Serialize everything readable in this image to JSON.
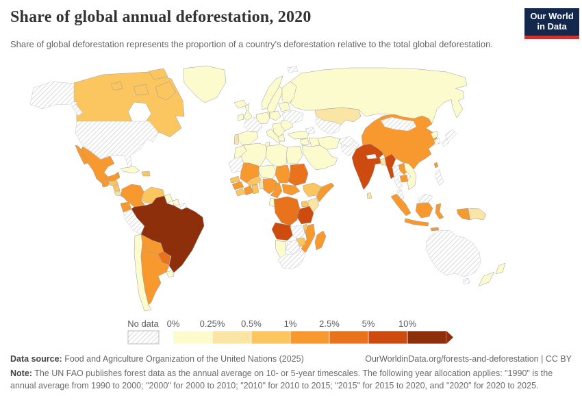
{
  "header": {
    "title": "Share of global annual deforestation, 2020",
    "subtitle": "Share of global deforestation represents the proportion of a country's deforestation relative to the total global deforestation.",
    "logo_line1": "Our World",
    "logo_line2": "in Data",
    "logo_bg": "#12294d",
    "logo_accent": "#cf3130"
  },
  "legend": {
    "no_data_label": "No data",
    "ticks": [
      "0%",
      "0.25%",
      "0.5%",
      "1%",
      "2.5%",
      "5%",
      "10%"
    ],
    "colors": [
      "#fcfbce",
      "#fbe5a4",
      "#fbc55f",
      "#f8992f",
      "#e8731c",
      "#ce4b10",
      "#8e2f0c"
    ],
    "hatch_stroke": "#d9d9d9"
  },
  "chart_data": {
    "type": "choropleth",
    "title": "Share of global annual deforestation, 2020",
    "unit": "%",
    "bucket_ranges": [
      "0-0.25%",
      "0.25-0.5%",
      "0.5-1%",
      "1-2.5%",
      "2.5-5%",
      "5-10%",
      ">10%"
    ],
    "no_data_label": "No data",
    "countries": [
      {
        "id": "russia",
        "name": "Russia",
        "bucket": 0
      },
      {
        "id": "canada",
        "name": "Canada",
        "bucket": 2
      },
      {
        "id": "canada-baffin",
        "name": "Canada",
        "bucket": 2
      },
      {
        "id": "canada-victoria",
        "name": "Canada",
        "bucket": 2
      },
      {
        "id": "canada-ellesmere",
        "name": "Canada",
        "bucket": 2
      },
      {
        "id": "canada-island-w",
        "name": "Canada",
        "bucket": 2
      },
      {
        "id": "usa-alaska",
        "name": "United States",
        "bucket": "no-data"
      },
      {
        "id": "usa-mainland",
        "name": "United States",
        "bucket": "no-data"
      },
      {
        "id": "greenland",
        "name": "Greenland",
        "bucket": 0
      },
      {
        "id": "svalbard",
        "name": "Svalbard",
        "bucket": "no-data"
      },
      {
        "id": "mexico",
        "name": "Mexico",
        "bucket": 3
      },
      {
        "id": "mexico-baja",
        "name": "Mexico",
        "bucket": 3
      },
      {
        "id": "guatemala",
        "name": "Guatemala",
        "bucket": 3
      },
      {
        "id": "honduras",
        "name": "Honduras",
        "bucket": 2
      },
      {
        "id": "nicaragua",
        "name": "Nicaragua",
        "bucket": 2
      },
      {
        "id": "costa-rica",
        "name": "Costa Rica",
        "bucket": 1
      },
      {
        "id": "panama",
        "name": "Panama",
        "bucket": 1
      },
      {
        "id": "cuba",
        "name": "Cuba",
        "bucket": 0
      },
      {
        "id": "hispaniola",
        "name": "Hispaniola",
        "bucket": 2
      },
      {
        "id": "colombia",
        "name": "Colombia",
        "bucket": 3
      },
      {
        "id": "venezuela",
        "name": "Venezuela",
        "bucket": 2
      },
      {
        "id": "guyana",
        "name": "Guyana",
        "bucket": 0
      },
      {
        "id": "suriname",
        "name": "Suriname",
        "bucket": 0
      },
      {
        "id": "french-guiana",
        "name": "French Guiana",
        "bucket": "no-data"
      },
      {
        "id": "ecuador",
        "name": "Ecuador",
        "bucket": 3
      },
      {
        "id": "peru",
        "name": "Peru",
        "bucket": "no-data"
      },
      {
        "id": "brazil",
        "name": "Brazil",
        "bucket": 6
      },
      {
        "id": "bolivia",
        "name": "Bolivia",
        "bucket": 3
      },
      {
        "id": "paraguay",
        "name": "Paraguay",
        "bucket": 4
      },
      {
        "id": "chile",
        "name": "Chile",
        "bucket": 0
      },
      {
        "id": "argentina",
        "name": "Argentina",
        "bucket": 3
      },
      {
        "id": "uruguay",
        "name": "Uruguay",
        "bucket": 0
      },
      {
        "id": "iceland",
        "name": "Iceland",
        "bucket": 0
      },
      {
        "id": "ireland",
        "name": "Ireland",
        "bucket": 0
      },
      {
        "id": "uk",
        "name": "United Kingdom",
        "bucket": 0
      },
      {
        "id": "norway",
        "name": "Norway",
        "bucket": 0
      },
      {
        "id": "sweden",
        "name": "Sweden",
        "bucket": 0
      },
      {
        "id": "finland",
        "name": "Finland",
        "bucket": 0
      },
      {
        "id": "denmark",
        "name": "Denmark",
        "bucket": 0
      },
      {
        "id": "spain",
        "name": "Spain",
        "bucket": 0
      },
      {
        "id": "portugal",
        "name": "Portugal",
        "bucket": 1
      },
      {
        "id": "france",
        "name": "France",
        "bucket": "no-data"
      },
      {
        "id": "germany",
        "name": "Germany",
        "bucket": 0
      },
      {
        "id": "italy",
        "name": "Italy",
        "bucket": 0
      },
      {
        "id": "poland",
        "name": "Poland",
        "bucket": 0
      },
      {
        "id": "balkans",
        "name": "Balkans",
        "bucket": 0
      },
      {
        "id": "greece",
        "name": "Greece",
        "bucket": 0
      },
      {
        "id": "romania",
        "name": "Romania",
        "bucket": 0
      },
      {
        "id": "baltics",
        "name": "Baltic states & Belarus",
        "bucket": 0
      },
      {
        "id": "ukraine",
        "name": "Ukraine",
        "bucket": "no-data"
      },
      {
        "id": "turkey",
        "name": "Turkey",
        "bucket": 0
      },
      {
        "id": "caucasus",
        "name": "Caucasus",
        "bucket": "no-data"
      },
      {
        "id": "kazakhstan",
        "name": "Kazakhstan",
        "bucket": 1
      },
      {
        "id": "central-asia",
        "name": "Turkmenistan & Uzbekistan",
        "bucket": "no-data"
      },
      {
        "id": "iran",
        "name": "Iran",
        "bucket": 0
      },
      {
        "id": "iraq",
        "name": "Iraq",
        "bucket": 0
      },
      {
        "id": "levant",
        "name": "Syria & Jordan",
        "bucket": 0
      },
      {
        "id": "saudi",
        "name": "Saudi Arabia",
        "bucket": 0
      },
      {
        "id": "afghanistan",
        "name": "Afghanistan",
        "bucket": "no-data"
      },
      {
        "id": "pakistan",
        "name": "Pakistan",
        "bucket": "no-data"
      },
      {
        "id": "india",
        "name": "India",
        "bucket": 5
      },
      {
        "id": "nepal",
        "name": "Nepal",
        "bucket": "no-data"
      },
      {
        "id": "sri-lanka",
        "name": "Sri Lanka",
        "bucket": 1
      },
      {
        "id": "bangladesh",
        "name": "Bangladesh",
        "bucket": 1
      },
      {
        "id": "myanmar",
        "name": "Myanmar",
        "bucket": 5
      },
      {
        "id": "thailand",
        "name": "Thailand",
        "bucket": "no-data"
      },
      {
        "id": "laos",
        "name": "Laos",
        "bucket": 3
      },
      {
        "id": "cambodia",
        "name": "Cambodia",
        "bucket": 3
      },
      {
        "id": "vietnam",
        "name": "Vietnam",
        "bucket": 0
      },
      {
        "id": "malaysia",
        "name": "Malaysia",
        "bucket": "no-data"
      },
      {
        "id": "malaysia-borneo",
        "name": "Malaysia",
        "bucket": "no-data"
      },
      {
        "id": "china",
        "name": "China",
        "bucket": 3
      },
      {
        "id": "mongolia",
        "name": "Mongolia",
        "bucket": "no-data"
      },
      {
        "id": "taiwan",
        "name": "Taiwan",
        "bucket": 3
      },
      {
        "id": "north-korea",
        "name": "North Korea",
        "bucket": 0
      },
      {
        "id": "south-korea",
        "name": "South Korea",
        "bucket": "no-data"
      },
      {
        "id": "japan-honshu",
        "name": "Japan",
        "bucket": "no-data"
      },
      {
        "id": "japan-kyushu",
        "name": "Japan",
        "bucket": "no-data"
      },
      {
        "id": "philippines",
        "name": "Philippines",
        "bucket": "no-data"
      },
      {
        "id": "sumatra",
        "name": "Indonesia",
        "bucket": 3
      },
      {
        "id": "java",
        "name": "Indonesia",
        "bucket": 3
      },
      {
        "id": "borneo",
        "name": "Indonesia",
        "bucket": 3
      },
      {
        "id": "sulawesi",
        "name": "Indonesia",
        "bucket": 3
      },
      {
        "id": "west-papua",
        "name": "Indonesia",
        "bucket": 3
      },
      {
        "id": "lesser-sunda",
        "name": "Indonesia",
        "bucket": 3
      },
      {
        "id": "papua-new-guinea",
        "name": "Papua New Guinea",
        "bucket": 1
      },
      {
        "id": "australia",
        "name": "Australia",
        "bucket": "no-data"
      },
      {
        "id": "tasmania",
        "name": "Australia",
        "bucket": "no-data"
      },
      {
        "id": "nz-north",
        "name": "New Zealand",
        "bucket": 0
      },
      {
        "id": "nz-south",
        "name": "New Zealand",
        "bucket": 0
      },
      {
        "id": "morocco",
        "name": "Morocco",
        "bucket": 0
      },
      {
        "id": "mauritania",
        "name": "Mauritania & Western Sahara",
        "bucket": "no-data"
      },
      {
        "id": "algeria",
        "name": "Algeria",
        "bucket": 0
      },
      {
        "id": "tunisia",
        "name": "Tunisia",
        "bucket": 0
      },
      {
        "id": "libya",
        "name": "Libya",
        "bucket": 0
      },
      {
        "id": "egypt",
        "name": "Egypt",
        "bucket": 0
      },
      {
        "id": "mali",
        "name": "Mali",
        "bucket": 3
      },
      {
        "id": "niger",
        "name": "Niger",
        "bucket": 0
      },
      {
        "id": "chad",
        "name": "Chad",
        "bucket": 3
      },
      {
        "id": "sudan",
        "name": "Sudan",
        "bucket": 4
      },
      {
        "id": "senegal",
        "name": "Senegal",
        "bucket": 2
      },
      {
        "id": "guinea",
        "name": "Guinea",
        "bucket": 3
      },
      {
        "id": "liberia",
        "name": "Liberia & Sierra Leone",
        "bucket": 2
      },
      {
        "id": "cote-divoire",
        "name": "Cote d'Ivoire",
        "bucket": 3
      },
      {
        "id": "ghana",
        "name": "Ghana",
        "bucket": 2
      },
      {
        "id": "burkina-faso",
        "name": "Burkina Faso",
        "bucket": 2
      },
      {
        "id": "benin",
        "name": "Benin & Togo",
        "bucket": 1
      },
      {
        "id": "nigeria",
        "name": "Nigeria",
        "bucket": 3
      },
      {
        "id": "cameroon",
        "name": "Cameroon",
        "bucket": 3
      },
      {
        "id": "car",
        "name": "Central African Republic",
        "bucket": 3
      },
      {
        "id": "ethiopia",
        "name": "Ethiopia",
        "bucket": 2
      },
      {
        "id": "somalia",
        "name": "Somalia",
        "bucket": 3
      },
      {
        "id": "uganda",
        "name": "Uganda",
        "bucket": 2
      },
      {
        "id": "kenya",
        "name": "Kenya",
        "bucket": 1
      },
      {
        "id": "gabon-congo",
        "name": "Gabon & Congo",
        "bucket": 0
      },
      {
        "id": "drc",
        "name": "Democratic Republic of Congo",
        "bucket": 4
      },
      {
        "id": "tanzania",
        "name": "Tanzania",
        "bucket": 5
      },
      {
        "id": "angola",
        "name": "Angola",
        "bucket": 5
      },
      {
        "id": "zambia",
        "name": "Zambia",
        "bucket": "no-data"
      },
      {
        "id": "malawi",
        "name": "Malawi",
        "bucket": 2
      },
      {
        "id": "mozambique",
        "name": "Mozambique",
        "bucket": 3
      },
      {
        "id": "zimbabwe",
        "name": "Zimbabwe",
        "bucket": 2
      },
      {
        "id": "botswana",
        "name": "Botswana",
        "bucket": "no-data"
      },
      {
        "id": "namibia",
        "name": "Namibia",
        "bucket": 0
      },
      {
        "id": "south-africa",
        "name": "South Africa",
        "bucket": "no-data"
      },
      {
        "id": "madagascar",
        "name": "Madagascar",
        "bucket": 3
      }
    ]
  },
  "footer": {
    "datasource_label": "Data source:",
    "datasource": "Food and Agriculture Organization of the United Nations (2025)",
    "link": "OurWorldinData.org/forests-and-deforestation | CC BY",
    "note_label": "Note:",
    "note": "The UN FAO publishes forest data as the annual average on 10- or 5-year timescales. The following year allocation applies: \"1990\" is the annual average from 1990 to 2000; \"2000\" for 2000 to 2010; \"2010\" for 2010 to 2015; \"2015\" for 2015 to 2020, and \"2020\" for 2020 to 2025."
  }
}
